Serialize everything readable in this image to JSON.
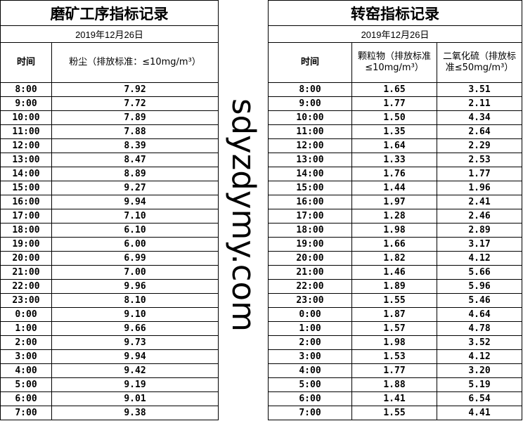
{
  "left_table": {
    "title": "磨矿工序指标记录",
    "date": "2019年12月26日",
    "headers": {
      "time": "时间",
      "dust": "粉尘（排放标准：≤10mg/m³）"
    },
    "rows": [
      [
        "8:00",
        "7.92"
      ],
      [
        "9:00",
        "7.72"
      ],
      [
        "10:00",
        "7.89"
      ],
      [
        "11:00",
        "7.88"
      ],
      [
        "12:00",
        "8.39"
      ],
      [
        "13:00",
        "8.47"
      ],
      [
        "14:00",
        "8.89"
      ],
      [
        "15:00",
        "9.27"
      ],
      [
        "16:00",
        "9.94"
      ],
      [
        "17:00",
        "7.10"
      ],
      [
        "18:00",
        "6.10"
      ],
      [
        "19:00",
        "6.00"
      ],
      [
        "20:00",
        "6.99"
      ],
      [
        "21:00",
        "7.00"
      ],
      [
        "22:00",
        "9.96"
      ],
      [
        "23:00",
        "8.10"
      ],
      [
        "0:00",
        "9.10"
      ],
      [
        "1:00",
        "9.66"
      ],
      [
        "2:00",
        "9.73"
      ],
      [
        "3:00",
        "9.94"
      ],
      [
        "4:00",
        "9.42"
      ],
      [
        "5:00",
        "9.19"
      ],
      [
        "6:00",
        "9.01"
      ],
      [
        "7:00",
        "9.38"
      ]
    ]
  },
  "right_table": {
    "title": "转窑指标记录",
    "date": "2019年12月26日",
    "headers": {
      "time": "时间",
      "particulate": "颗粒物（排放标准≤10mg/m³）",
      "so2": "二氧化硫（排放标准≤50mg/m³）"
    },
    "rows": [
      [
        "8:00",
        "1.65",
        "3.51"
      ],
      [
        "9:00",
        "1.77",
        "2.11"
      ],
      [
        "10:00",
        "1.50",
        "4.34"
      ],
      [
        "11:00",
        "1.35",
        "2.64"
      ],
      [
        "12:00",
        "1.64",
        "2.29"
      ],
      [
        "13:00",
        "1.33",
        "2.53"
      ],
      [
        "14:00",
        "1.76",
        "1.77"
      ],
      [
        "15:00",
        "1.44",
        "1.96"
      ],
      [
        "16:00",
        "1.97",
        "2.41"
      ],
      [
        "17:00",
        "1.28",
        "2.46"
      ],
      [
        "18:00",
        "1.98",
        "2.89"
      ],
      [
        "19:00",
        "1.66",
        "3.17"
      ],
      [
        "20:00",
        "1.82",
        "4.12"
      ],
      [
        "21:00",
        "1.46",
        "5.66"
      ],
      [
        "22:00",
        "1.89",
        "5.96"
      ],
      [
        "23:00",
        "1.55",
        "5.46"
      ],
      [
        "0:00",
        "1.87",
        "4.64"
      ],
      [
        "1:00",
        "1.57",
        "4.78"
      ],
      [
        "2:00",
        "1.98",
        "3.52"
      ],
      [
        "3:00",
        "1.53",
        "4.12"
      ],
      [
        "4:00",
        "1.77",
        "3.20"
      ],
      [
        "5:00",
        "1.88",
        "5.19"
      ],
      [
        "6:00",
        "1.41",
        "6.54"
      ],
      [
        "7:00",
        "1.55",
        "4.41"
      ]
    ]
  },
  "watermark": "sdyzdymy.com"
}
